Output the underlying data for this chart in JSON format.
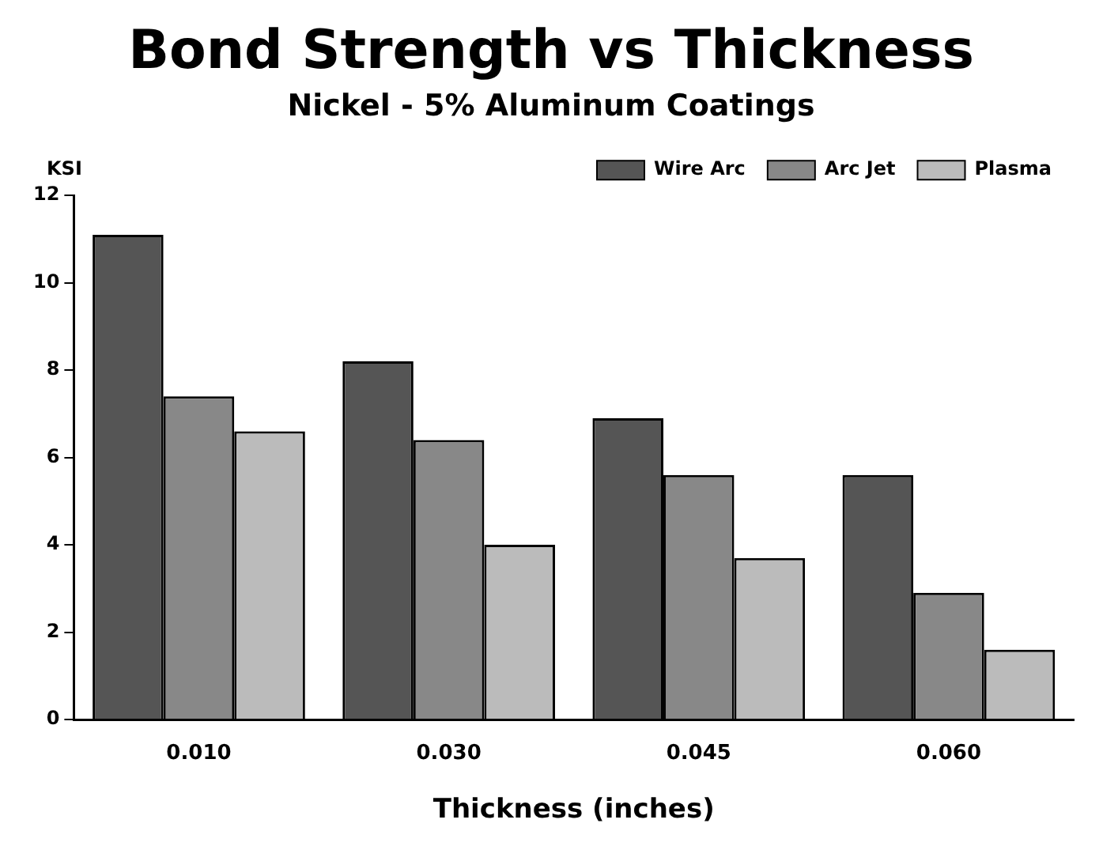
{
  "chart_data": {
    "type": "bar",
    "title": "Bond Strength vs Thickness",
    "subtitle": "Nickel - 5% Aluminum Coatings",
    "xlabel": "Thickness (inches)",
    "ylabel": "KSI",
    "categories": [
      "0.010",
      "0.030",
      "0.045",
      "0.060"
    ],
    "series": [
      {
        "name": "Wire Arc",
        "color": "#555555",
        "values": [
          11.1,
          8.2,
          6.9,
          5.6
        ]
      },
      {
        "name": "Arc Jet",
        "color": "#888888",
        "values": [
          7.4,
          6.4,
          5.6,
          2.9
        ]
      },
      {
        "name": "Plasma",
        "color": "#bbbbbb",
        "values": [
          6.6,
          4.0,
          3.7,
          1.6
        ]
      }
    ],
    "ylim": [
      0,
      12
    ],
    "yticks": [
      0,
      2,
      4,
      6,
      8,
      10,
      12
    ],
    "grid": false,
    "legend": "top right"
  }
}
